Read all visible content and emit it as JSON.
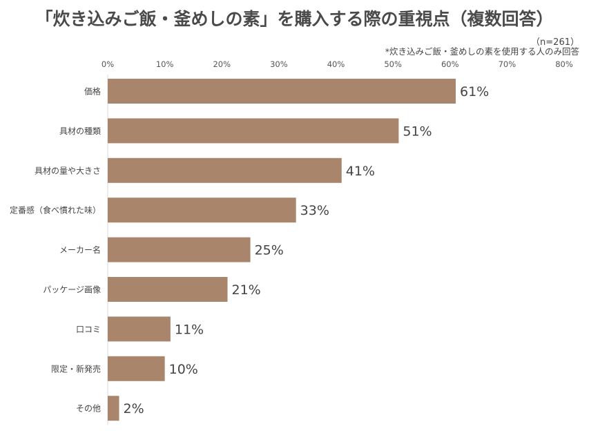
{
  "chart_data": {
    "type": "bar",
    "orientation": "horizontal",
    "title": "「炊き込みご飯・釜めしの素」を購入する際の重視点（複数回答）",
    "sample_note": "（n=261）",
    "footnote": "*炊き込みご飯・釜めしの素を使用する人のみ回答",
    "categories": [
      "価格",
      "具材の種類",
      "具材の量や大きさ",
      "定番感（食べ慣れた味）",
      "メーカー名",
      "パッケージ画像",
      "口コミ",
      "限定・新発売",
      "その他"
    ],
    "values": [
      61,
      51,
      41,
      33,
      25,
      21,
      11,
      10,
      2
    ],
    "value_labels": [
      "61%",
      "51%",
      "41%",
      "33%",
      "25%",
      "21%",
      "11%",
      "10%",
      "2%"
    ],
    "xlim": [
      0,
      80
    ],
    "x_ticks": [
      "0%",
      "10%",
      "20%",
      "30%",
      "40%",
      "50%",
      "60%",
      "70%",
      "80%"
    ],
    "x_axis_position": "top",
    "grid": false,
    "bar_color": "#a9866b"
  }
}
